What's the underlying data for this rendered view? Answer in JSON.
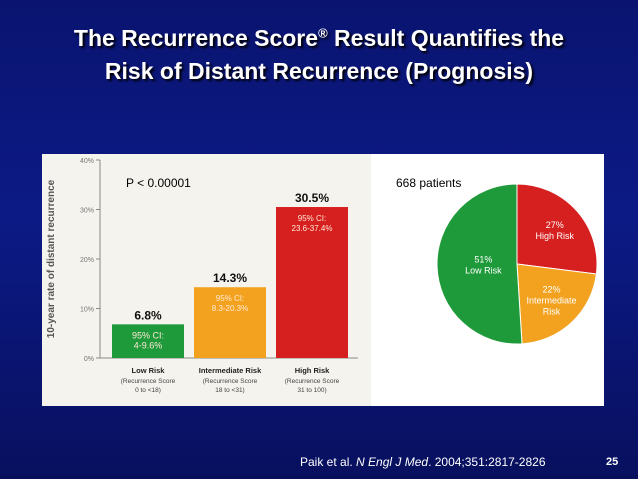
{
  "slide": {
    "title_part1": "The Recurrence Score",
    "title_reg": "®",
    "title_part2": " Result Quantifies the",
    "title_line2": "Risk of Distant Recurrence (Prognosis)",
    "p_value": "P < 0.00001",
    "patients": "668 patients",
    "citation_pre": "Paik et al. ",
    "citation_journal": "N Engl J Med",
    "citation_post": ". 2004;351:2817-2826",
    "slide_number": "25"
  },
  "chart_data": [
    {
      "type": "bar",
      "ylabel": "10-year rate of distant recurrence",
      "ylim": [
        0,
        40
      ],
      "yticks": [
        "0%",
        "10%",
        "20%",
        "30%",
        "40%"
      ],
      "categories": [
        {
          "name": "Low Risk",
          "sub1": "(Recurrence Score",
          "sub2": "0 to <18)"
        },
        {
          "name": "Intermediate Risk",
          "sub1": "(Recurrence Score",
          "sub2": "18 to <31)"
        },
        {
          "name": "High Risk",
          "sub1": "(Recurrence Score",
          "sub2": "31 to 100)"
        }
      ],
      "values": [
        6.8,
        14.3,
        30.5
      ],
      "value_labels": [
        "6.8%",
        "14.3%",
        "30.5%"
      ],
      "ci_labels": [
        [
          "95% CI:",
          "4-9.6%"
        ],
        [
          "95% CI:",
          "8.3-20.3%"
        ],
        [
          "95% CI:",
          "23.6-37.4%"
        ]
      ],
      "colors": [
        "#1f9a3a",
        "#f3a21f",
        "#d61f1f"
      ],
      "grid": false
    },
    {
      "type": "pie",
      "slices": [
        {
          "label": "High Risk",
          "pct_label": "27%",
          "value": 27,
          "color": "#d61f1f"
        },
        {
          "label": "Intermediate Risk",
          "pct_label": "22%",
          "value": 22,
          "color": "#f3a21f"
        },
        {
          "label": "Low Risk",
          "pct_label": "51%",
          "value": 51,
          "color": "#1f9a3a"
        }
      ],
      "label_lines": [
        [
          "27%",
          "High Risk"
        ],
        [
          "22%",
          "Intermediate",
          "Risk"
        ],
        [
          "51%",
          "Low Risk"
        ]
      ]
    }
  ]
}
